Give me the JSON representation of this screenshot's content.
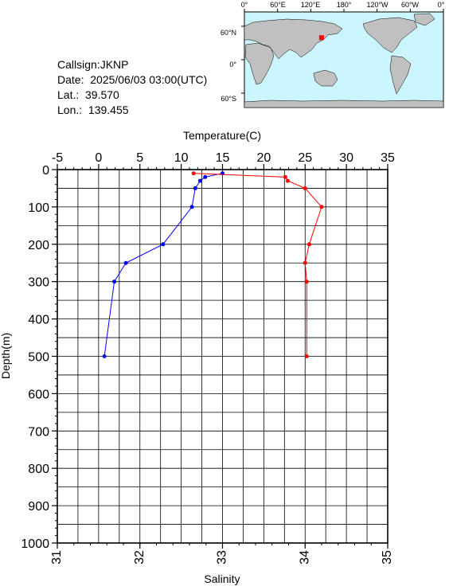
{
  "station": {
    "callsign": "Callsign:JKNP",
    "date": "Date:  2025/06/03 03:00(UTC)",
    "lat": "Lat.:  39.570",
    "lon": "Lon.:  139.455"
  },
  "map": {
    "lon_labels": [
      "0°",
      "60°E",
      "120°E",
      "180°",
      "120°W",
      "60°W",
      "0°"
    ],
    "lat_labels": [
      "60°N",
      "0°",
      "60°S"
    ],
    "ocean_color": "#ccf6ff",
    "land_color": "#c0c0c0",
    "marker_color": "#ff0000",
    "marker": {
      "lon": 139.455,
      "lat": 39.57
    }
  },
  "chart_data": {
    "type": "line",
    "xlabel_top": "Temperature(C)",
    "xlabel_bottom": "Salinity",
    "ylabel": "Depth(m)",
    "temperature_range": [
      -5,
      35
    ],
    "salinity_range": [
      31,
      35
    ],
    "depth_range": [
      0,
      1000
    ],
    "temperature_ticks": [
      "-5",
      "0",
      "5",
      "10",
      "15",
      "20",
      "25",
      "30",
      "35"
    ],
    "salinity_ticks": [
      "31",
      "32",
      "33",
      "34",
      "35"
    ],
    "depth_ticks": [
      "0",
      "100",
      "200",
      "300",
      "400",
      "500",
      "600",
      "700",
      "800",
      "900",
      "1000"
    ],
    "grid": true,
    "series": [
      {
        "variable": "temperature",
        "color": "#0000ff",
        "depth": [
          10,
          20,
          30,
          50,
          100,
          200,
          250,
          300,
          500
        ],
        "values": [
          15.0,
          12.9,
          12.3,
          11.7,
          11.3,
          7.8,
          3.3,
          1.9,
          0.7
        ]
      },
      {
        "variable": "salinity",
        "color": "#ff0000",
        "depth": [
          10,
          20,
          30,
          50,
          100,
          200,
          250,
          300,
          500
        ],
        "values": [
          32.65,
          33.76,
          33.79,
          34.0,
          34.2,
          34.05,
          34.0,
          34.02,
          34.02
        ]
      }
    ]
  }
}
